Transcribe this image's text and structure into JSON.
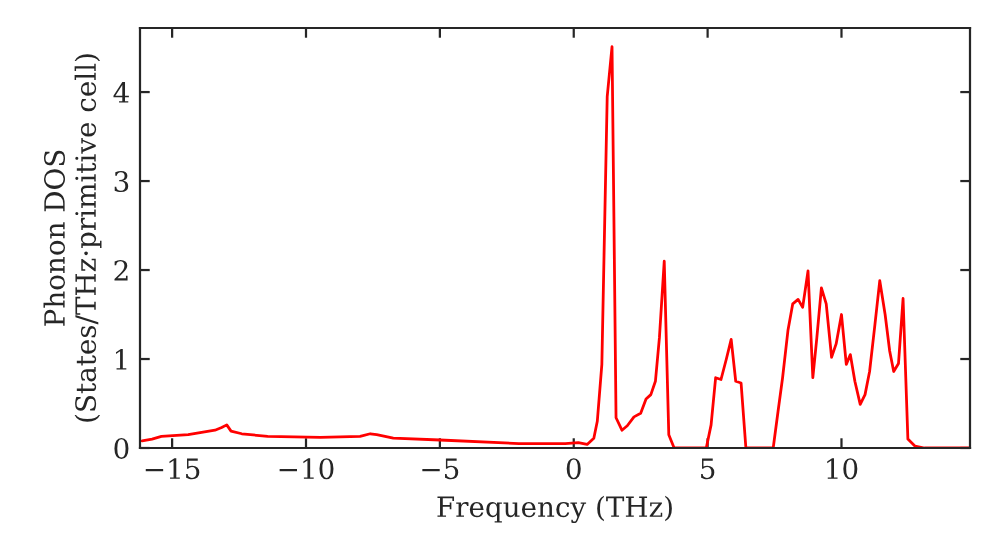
{
  "chart_data": {
    "type": "line",
    "xlabel": "Frequency (THz)",
    "ylabel": "Phonon DOS\n(States/THz·primitive cell)",
    "xlim": [
      -16.2,
      14.8
    ],
    "ylim": [
      0,
      4.72
    ],
    "xticks": [
      -15,
      -10,
      -5,
      0,
      5,
      10
    ],
    "yticks": [
      0,
      1,
      2,
      3,
      4
    ],
    "grid": false,
    "marker": "none",
    "line_style": "solid",
    "series": [
      {
        "color": "#ff0000",
        "x": [
          -16.12,
          -15.75,
          -15.4,
          -14.4,
          -13.4,
          -13.15,
          -12.96,
          -12.8,
          -12.4,
          -11.43,
          -9.46,
          -7.98,
          -7.6,
          -7.36,
          -6.74,
          -5.0,
          -2.05,
          -0.32,
          0.17,
          0.5,
          0.75,
          0.88,
          1.05,
          1.25,
          1.43,
          1.5,
          1.58,
          1.8,
          2.0,
          2.25,
          2.5,
          2.7,
          2.88,
          3.05,
          3.2,
          3.38,
          3.55,
          3.75,
          4.95,
          5.13,
          5.3,
          5.5,
          5.7,
          5.88,
          6.05,
          6.25,
          6.43,
          7.45,
          7.63,
          7.8,
          8.0,
          8.18,
          8.38,
          8.55,
          8.75,
          8.93,
          9.08,
          9.25,
          9.43,
          9.63,
          9.8,
          10.0,
          10.18,
          10.33,
          10.5,
          10.7,
          10.88,
          11.05,
          11.25,
          11.43,
          11.63,
          11.8,
          11.95,
          12.13,
          12.3,
          12.48,
          12.75,
          13.1,
          14.8
        ],
        "values": [
          0.08,
          0.1,
          0.13,
          0.15,
          0.2,
          0.23,
          0.26,
          0.19,
          0.16,
          0.13,
          0.12,
          0.13,
          0.16,
          0.15,
          0.11,
          0.09,
          0.05,
          0.05,
          0.06,
          0.04,
          0.11,
          0.3,
          0.94,
          3.95,
          4.51,
          2.6,
          0.34,
          0.2,
          0.25,
          0.35,
          0.39,
          0.55,
          0.6,
          0.75,
          1.24,
          2.1,
          0.15,
          0,
          0,
          0.26,
          0.79,
          0.77,
          1.0,
          1.22,
          0.75,
          0.73,
          0,
          0,
          0.41,
          0.79,
          1.32,
          1.62,
          1.67,
          1.58,
          1.99,
          0.79,
          1.24,
          1.8,
          1.62,
          1.02,
          1.17,
          1.5,
          0.94,
          1.05,
          0.75,
          0.49,
          0.6,
          0.86,
          1.39,
          1.88,
          1.5,
          1.09,
          0.86,
          0.95,
          1.68,
          0.1,
          0.02,
          0,
          0
        ]
      }
    ]
  }
}
